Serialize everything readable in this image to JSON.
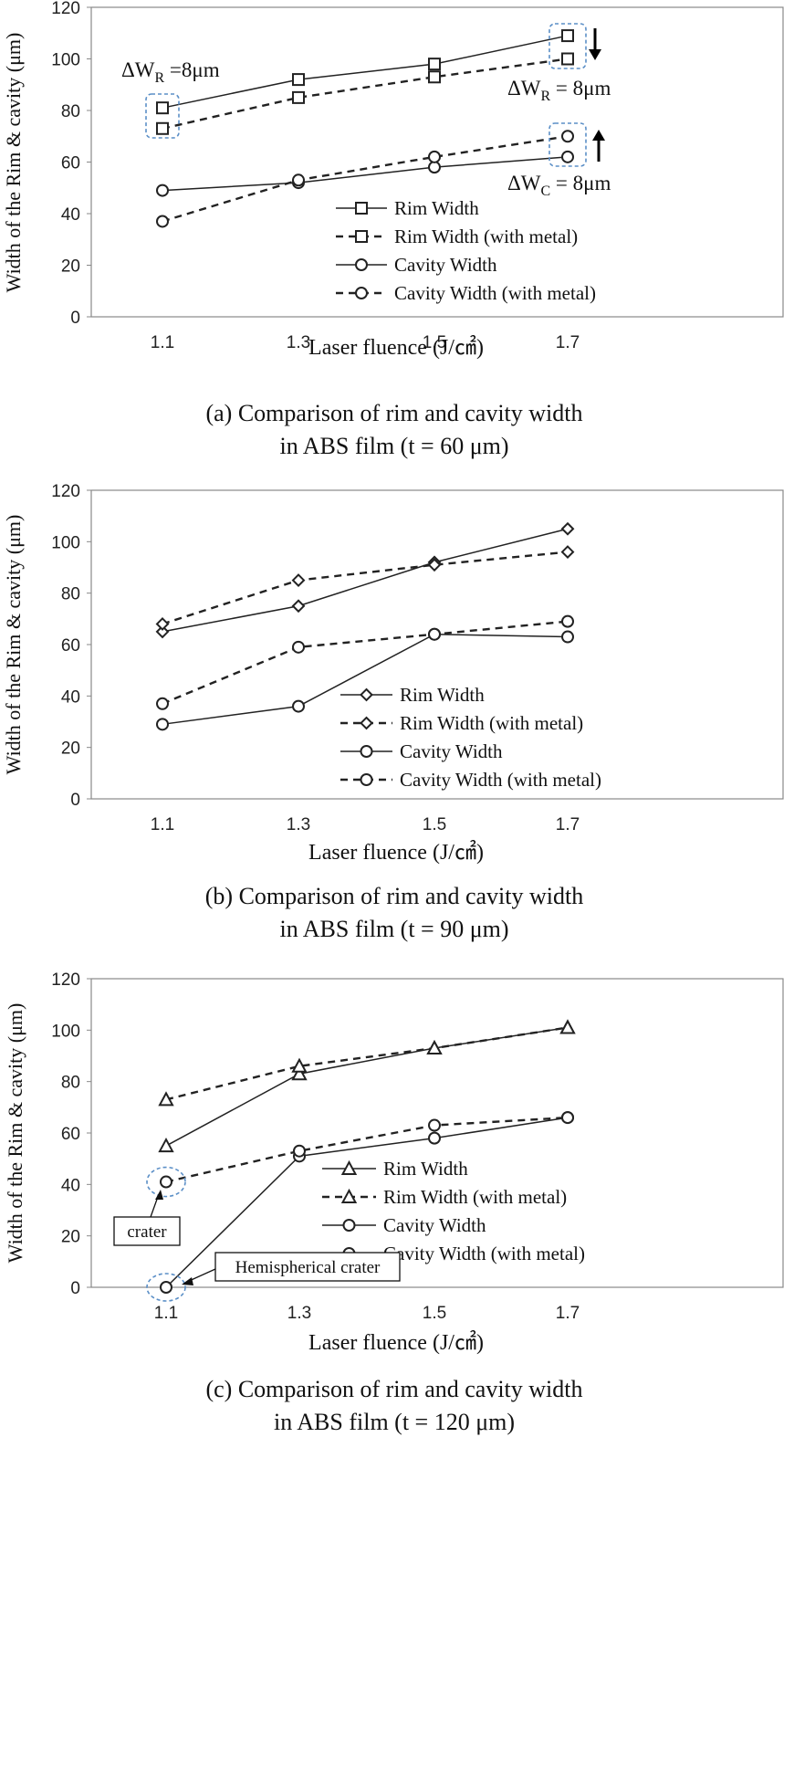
{
  "chart_data": [
    {
      "type": "line",
      "x": [
        1.1,
        1.3,
        1.5,
        1.7
      ],
      "x_tick_labels": [
        "1.1",
        "1.3",
        "1.5",
        "1.7"
      ],
      "ylim": [
        0,
        120
      ],
      "y_tick_labels": [
        "0",
        "20",
        "40",
        "60",
        "80",
        "100",
        "120"
      ],
      "xlabel": "Laser fluence (J/㎠)",
      "ylabel": "Width of the Rim & cavity (μm)",
      "caption_line1": "(a) Comparison of rim and cavity width",
      "caption_line2": "in ABS film (t = 60 μm)",
      "marker": "square",
      "series": [
        {
          "name": "Rim Width",
          "style": "solid",
          "marker": "square",
          "values": [
            81,
            92,
            98,
            109
          ]
        },
        {
          "name": "Rim Width (with metal)",
          "style": "dashed",
          "marker": "square",
          "values": [
            73,
            85,
            93,
            100
          ]
        },
        {
          "name": "Cavity Width",
          "style": "solid",
          "marker": "circle",
          "values": [
            49,
            52,
            58,
            62
          ]
        },
        {
          "name": "Cavity Width (with metal)",
          "style": "dashed",
          "marker": "circle",
          "values": [
            37,
            53,
            62,
            70
          ]
        }
      ],
      "annotations": [
        {
          "text": "ΔW",
          "sub": "R",
          "rest": " =8μm"
        },
        {
          "text": "ΔW",
          "sub": "R",
          "rest": " = 8μm"
        },
        {
          "text": "ΔW",
          "sub": "C",
          "rest": " = 8μm"
        }
      ]
    },
    {
      "type": "line",
      "x": [
        1.1,
        1.3,
        1.5,
        1.7
      ],
      "x_tick_labels": [
        "1.1",
        "1.3",
        "1.5",
        "1.7"
      ],
      "ylim": [
        0,
        120
      ],
      "y_tick_labels": [
        "0",
        "20",
        "40",
        "60",
        "80",
        "100",
        "120"
      ],
      "xlabel": "Laser fluence (J/㎠)",
      "ylabel": "Width of the Rim & cavity (μm)",
      "caption_line1": "(b) Comparison of rim and cavity width",
      "caption_line2": "in ABS film (t = 90 μm)",
      "series": [
        {
          "name": "Rim Width",
          "style": "solid",
          "marker": "diamond",
          "values": [
            65,
            75,
            92,
            105
          ]
        },
        {
          "name": "Rim Width (with metal)",
          "style": "dashed",
          "marker": "diamond",
          "values": [
            68,
            85,
            91,
            96
          ]
        },
        {
          "name": "Cavity Width",
          "style": "solid",
          "marker": "circle",
          "values": [
            29,
            36,
            64,
            63
          ]
        },
        {
          "name": "Cavity Width (with metal)",
          "style": "dashed",
          "marker": "circle",
          "values": [
            37,
            59,
            64,
            69
          ]
        }
      ]
    },
    {
      "type": "line",
      "x": [
        1.1,
        1.3,
        1.5,
        1.7
      ],
      "x_tick_labels": [
        "1.1",
        "1.3",
        "1.5",
        "1.7"
      ],
      "ylim": [
        0,
        120
      ],
      "y_tick_labels": [
        "0",
        "20",
        "40",
        "60",
        "80",
        "100",
        "120"
      ],
      "xlabel": "Laser fluence (J/㎠)",
      "ylabel": "Width of the Rim & cavity (μm)",
      "caption_line1": "(c) Comparison of rim and cavity width",
      "caption_line2": "in ABS film (t = 120 μm)",
      "series": [
        {
          "name": "Rim Width",
          "style": "solid",
          "marker": "triangle",
          "values": [
            55,
            83,
            93,
            101
          ]
        },
        {
          "name": "Rim Width (with metal)",
          "style": "dashed",
          "marker": "triangle",
          "values": [
            73,
            86,
            93,
            101
          ]
        },
        {
          "name": "Cavity Width",
          "style": "solid",
          "marker": "circle",
          "values": [
            0,
            51,
            58,
            66
          ]
        },
        {
          "name": "Cavity Width (with metal)",
          "style": "dashed",
          "marker": "circle",
          "values": [
            41,
            53,
            63,
            66
          ]
        }
      ],
      "annotations": [
        {
          "text": "crater"
        },
        {
          "text": "Hemispherical crater"
        }
      ]
    }
  ]
}
